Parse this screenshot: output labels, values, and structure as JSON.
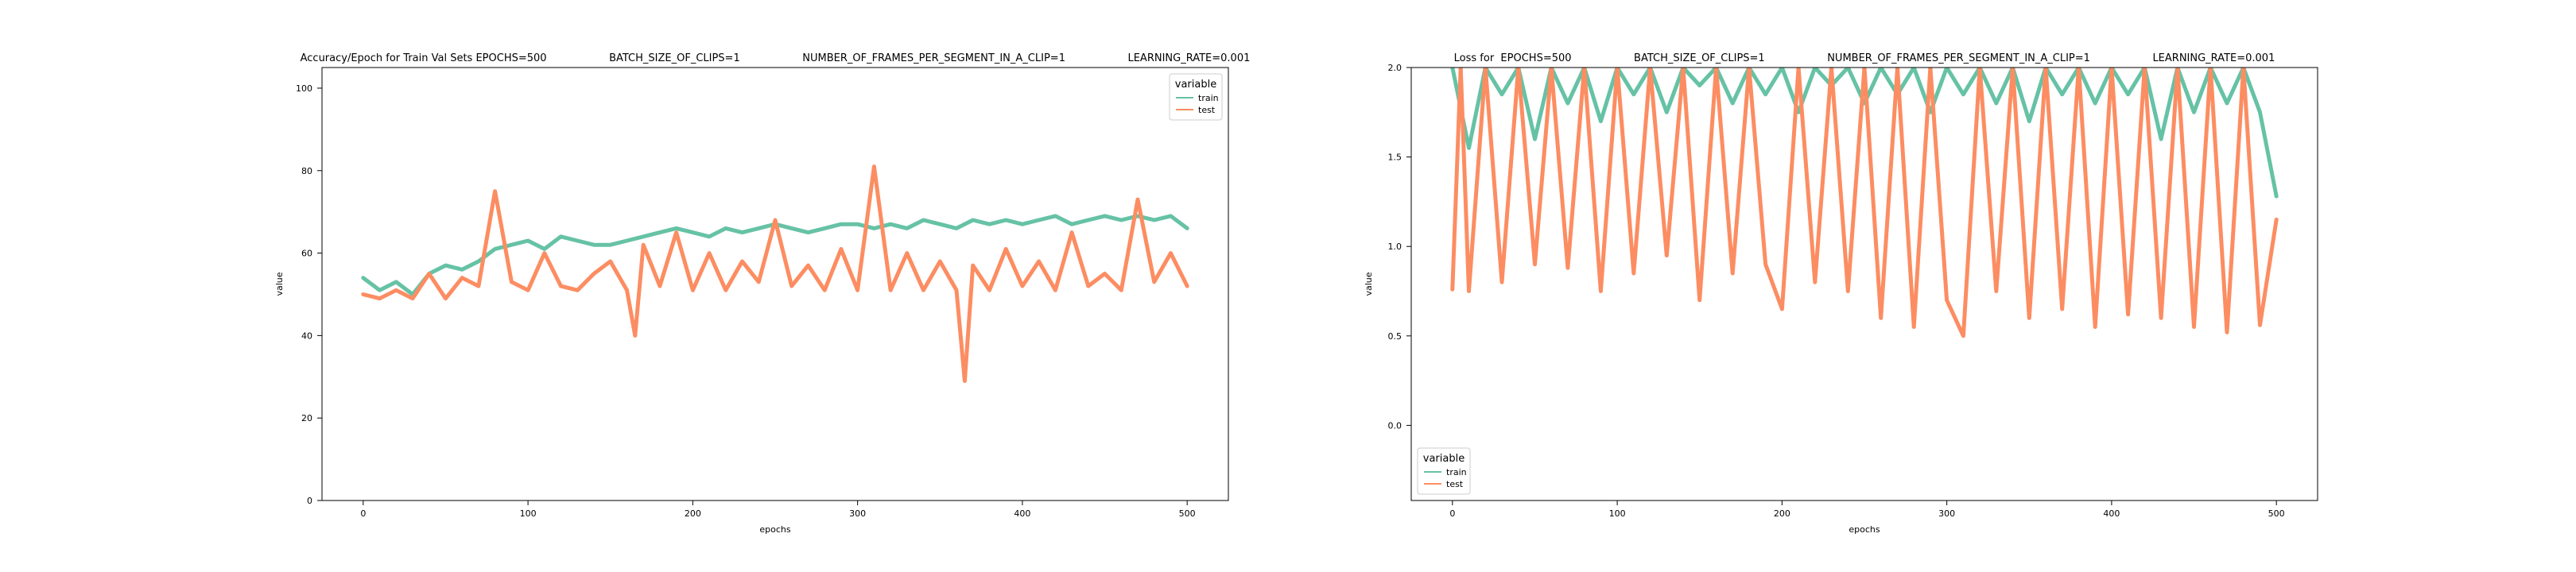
{
  "chart_data": [
    {
      "type": "line",
      "title": "Accuracy/Epoch for Train Val Sets EPOCHS=500                   BATCH_SIZE_OF_CLIPS=1                   NUMBER_OF_FRAMES_PER_SEGMENT_IN_A_CLIP=1                   LEARNING_RATE=0.001",
      "xlabel": "epochs",
      "ylabel": "value",
      "xlim": [
        -25,
        525
      ],
      "ylim": [
        0,
        105
      ],
      "xticks": [
        0,
        100,
        200,
        300,
        400,
        500
      ],
      "yticks": [
        0,
        20,
        40,
        60,
        80,
        100
      ],
      "grid": false,
      "legend": {
        "title": "variable",
        "placement": "upper right",
        "entries": [
          "train",
          "test"
        ]
      },
      "series": [
        {
          "name": "train",
          "color": "#66c2a5",
          "points": [
            [
              0,
              54
            ],
            [
              10,
              51
            ],
            [
              20,
              53
            ],
            [
              30,
              50
            ],
            [
              40,
              55
            ],
            [
              50,
              57
            ],
            [
              60,
              56
            ],
            [
              70,
              58
            ],
            [
              80,
              61
            ],
            [
              90,
              62
            ],
            [
              100,
              63
            ],
            [
              110,
              61
            ],
            [
              120,
              64
            ],
            [
              130,
              63
            ],
            [
              140,
              62
            ],
            [
              150,
              62
            ],
            [
              160,
              63
            ],
            [
              170,
              64
            ],
            [
              180,
              65
            ],
            [
              190,
              66
            ],
            [
              200,
              65
            ],
            [
              210,
              64
            ],
            [
              220,
              66
            ],
            [
              230,
              65
            ],
            [
              240,
              66
            ],
            [
              250,
              67
            ],
            [
              260,
              66
            ],
            [
              270,
              65
            ],
            [
              280,
              66
            ],
            [
              290,
              67
            ],
            [
              300,
              67
            ],
            [
              310,
              66
            ],
            [
              320,
              67
            ],
            [
              330,
              66
            ],
            [
              340,
              68
            ],
            [
              350,
              67
            ],
            [
              360,
              66
            ],
            [
              370,
              68
            ],
            [
              380,
              67
            ],
            [
              390,
              68
            ],
            [
              400,
              67
            ],
            [
              410,
              68
            ],
            [
              420,
              69
            ],
            [
              430,
              67
            ],
            [
              440,
              68
            ],
            [
              450,
              69
            ],
            [
              460,
              68
            ],
            [
              470,
              69
            ],
            [
              480,
              68
            ],
            [
              490,
              69
            ],
            [
              500,
              66
            ]
          ]
        },
        {
          "name": "test",
          "color": "#fc8d62",
          "points": [
            [
              0,
              50
            ],
            [
              10,
              49
            ],
            [
              20,
              51
            ],
            [
              30,
              49
            ],
            [
              40,
              55
            ],
            [
              50,
              49
            ],
            [
              60,
              54
            ],
            [
              70,
              52
            ],
            [
              80,
              75
            ],
            [
              90,
              53
            ],
            [
              100,
              51
            ],
            [
              110,
              60
            ],
            [
              120,
              52
            ],
            [
              130,
              51
            ],
            [
              140,
              55
            ],
            [
              150,
              58
            ],
            [
              160,
              51
            ],
            [
              165,
              40
            ],
            [
              170,
              62
            ],
            [
              180,
              52
            ],
            [
              190,
              65
            ],
            [
              200,
              51
            ],
            [
              210,
              60
            ],
            [
              220,
              51
            ],
            [
              230,
              58
            ],
            [
              240,
              53
            ],
            [
              250,
              68
            ],
            [
              260,
              52
            ],
            [
              270,
              57
            ],
            [
              280,
              51
            ],
            [
              290,
              61
            ],
            [
              300,
              51
            ],
            [
              310,
              81
            ],
            [
              320,
              51
            ],
            [
              330,
              60
            ],
            [
              340,
              51
            ],
            [
              350,
              58
            ],
            [
              360,
              51
            ],
            [
              365,
              29
            ],
            [
              370,
              57
            ],
            [
              380,
              51
            ],
            [
              390,
              61
            ],
            [
              400,
              52
            ],
            [
              410,
              58
            ],
            [
              420,
              51
            ],
            [
              430,
              65
            ],
            [
              440,
              52
            ],
            [
              450,
              55
            ],
            [
              460,
              51
            ],
            [
              470,
              73
            ],
            [
              480,
              53
            ],
            [
              490,
              60
            ],
            [
              500,
              52
            ]
          ]
        }
      ]
    },
    {
      "type": "line",
      "title": "Loss for  EPOCHS=500                   BATCH_SIZE_OF_CLIPS=1                   NUMBER_OF_FRAMES_PER_SEGMENT_IN_A_CLIP=1                   LEARNING_RATE=0.001",
      "xlabel": "epochs",
      "ylabel": "value",
      "xlim": [
        -25,
        525
      ],
      "ylim": [
        -0.42,
        2.0
      ],
      "xticks": [
        0,
        100,
        200,
        300,
        400,
        500
      ],
      "yticks": [
        0.0,
        0.5,
        1.0,
        1.5,
        2.0
      ],
      "ytick_labels": [
        "0.0",
        "0.5",
        "1.0",
        "1.5",
        "2.0"
      ],
      "grid": false,
      "legend": {
        "title": "variable",
        "placement": "lower left",
        "entries": [
          "train",
          "test"
        ]
      },
      "series": [
        {
          "name": "train",
          "color": "#66c2a5",
          "points": [
            [
              0,
              2.0
            ],
            [
              10,
              1.55
            ],
            [
              20,
              2.0
            ],
            [
              30,
              1.85
            ],
            [
              40,
              2.0
            ],
            [
              50,
              1.6
            ],
            [
              60,
              2.0
            ],
            [
              70,
              1.8
            ],
            [
              80,
              2.0
            ],
            [
              90,
              1.7
            ],
            [
              100,
              2.0
            ],
            [
              110,
              1.85
            ],
            [
              120,
              2.0
            ],
            [
              130,
              1.75
            ],
            [
              140,
              2.0
            ],
            [
              150,
              1.9
            ],
            [
              160,
              2.0
            ],
            [
              170,
              1.8
            ],
            [
              180,
              2.0
            ],
            [
              190,
              1.85
            ],
            [
              200,
              2.0
            ],
            [
              210,
              1.75
            ],
            [
              220,
              2.0
            ],
            [
              230,
              1.9
            ],
            [
              240,
              2.0
            ],
            [
              250,
              1.8
            ],
            [
              260,
              2.0
            ],
            [
              270,
              1.85
            ],
            [
              280,
              2.0
            ],
            [
              290,
              1.75
            ],
            [
              300,
              2.0
            ],
            [
              310,
              1.85
            ],
            [
              320,
              2.0
            ],
            [
              330,
              1.8
            ],
            [
              340,
              2.0
            ],
            [
              350,
              1.7
            ],
            [
              360,
              2.0
            ],
            [
              370,
              1.85
            ],
            [
              380,
              2.0
            ],
            [
              390,
              1.8
            ],
            [
              400,
              2.0
            ],
            [
              410,
              1.85
            ],
            [
              420,
              2.0
            ],
            [
              430,
              1.6
            ],
            [
              440,
              2.0
            ],
            [
              450,
              1.75
            ],
            [
              460,
              2.0
            ],
            [
              470,
              1.8
            ],
            [
              480,
              2.0
            ],
            [
              490,
              1.75
            ],
            [
              500,
              1.28
            ]
          ]
        },
        {
          "name": "test",
          "color": "#fc8d62",
          "points": [
            [
              0,
              0.76
            ],
            [
              5,
              2.0
            ],
            [
              10,
              0.75
            ],
            [
              20,
              2.0
            ],
            [
              30,
              0.8
            ],
            [
              40,
              2.0
            ],
            [
              50,
              0.9
            ],
            [
              60,
              2.0
            ],
            [
              70,
              0.88
            ],
            [
              80,
              2.0
            ],
            [
              90,
              0.75
            ],
            [
              100,
              2.0
            ],
            [
              110,
              0.85
            ],
            [
              120,
              2.0
            ],
            [
              130,
              0.95
            ],
            [
              140,
              2.0
            ],
            [
              150,
              0.7
            ],
            [
              160,
              2.0
            ],
            [
              170,
              0.85
            ],
            [
              180,
              2.0
            ],
            [
              190,
              0.9
            ],
            [
              200,
              0.65
            ],
            [
              210,
              2.0
            ],
            [
              220,
              0.8
            ],
            [
              230,
              2.0
            ],
            [
              240,
              0.75
            ],
            [
              250,
              2.0
            ],
            [
              260,
              0.6
            ],
            [
              270,
              2.0
            ],
            [
              280,
              0.55
            ],
            [
              290,
              2.0
            ],
            [
              300,
              0.7
            ],
            [
              310,
              0.5
            ],
            [
              320,
              2.0
            ],
            [
              330,
              0.75
            ],
            [
              340,
              2.0
            ],
            [
              350,
              0.6
            ],
            [
              360,
              2.0
            ],
            [
              370,
              0.65
            ],
            [
              380,
              2.0
            ],
            [
              390,
              0.55
            ],
            [
              400,
              2.0
            ],
            [
              410,
              0.62
            ],
            [
              420,
              2.0
            ],
            [
              430,
              0.6
            ],
            [
              440,
              2.0
            ],
            [
              450,
              0.55
            ],
            [
              460,
              2.0
            ],
            [
              470,
              0.52
            ],
            [
              480,
              2.0
            ],
            [
              490,
              0.56
            ],
            [
              500,
              1.15
            ]
          ]
        }
      ]
    }
  ]
}
